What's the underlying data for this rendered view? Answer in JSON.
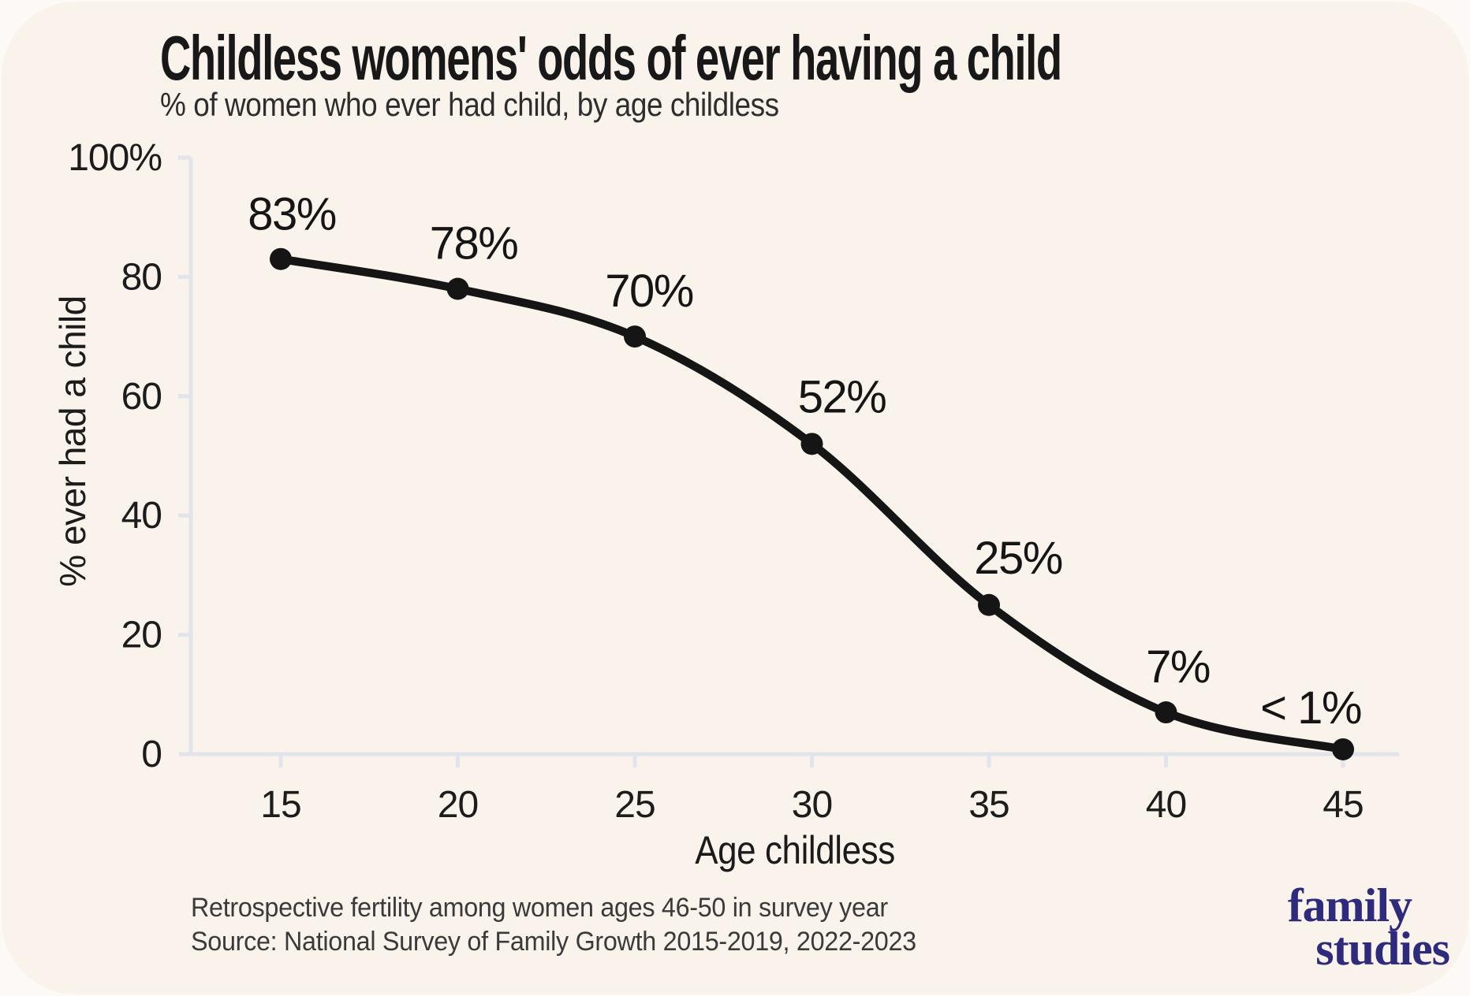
{
  "page": {
    "background": "#fdf9f6",
    "card_background": "#faf3ec"
  },
  "header": {
    "title": "Childless womens' odds of ever having a child",
    "subtitle": "% of women who ever had child, by age childless"
  },
  "chart_data": {
    "type": "line",
    "title": "Childless womens' odds of ever having a child",
    "subtitle": "% of women who ever had child, by age childless",
    "x_label": "Age childless",
    "y_label": "% ever had a child",
    "x": [
      15,
      20,
      25,
      30,
      35,
      40,
      45
    ],
    "values": [
      83,
      78,
      70,
      52,
      25,
      7,
      0.8
    ],
    "point_labels": [
      "83%",
      "78%",
      "70%",
      "52%",
      "25%",
      "7%",
      "< 1%"
    ],
    "x_tick_labels": [
      "15",
      "20",
      "25",
      "30",
      "35",
      "40",
      "45"
    ],
    "y_ticks": [
      0,
      20,
      40,
      60,
      80,
      100
    ],
    "y_tick_labels": [
      "0",
      "20",
      "40",
      "60",
      "80",
      "100%"
    ],
    "xlim": [
      12.5,
      46.6
    ],
    "ylim": [
      0,
      100
    ],
    "grid": false,
    "legend": false,
    "line_color": "#151515",
    "point_color": "#151515",
    "axis_color": "#e1e4ea",
    "tick_label_color": "#1c1c1c",
    "data_label_color": "#151515"
  },
  "footer": {
    "note": "Retrospective fertility among women ages 46-50 in survey year",
    "source": "Source: National Survey of Family Growth 2015-2019, 2022-2023"
  },
  "logo": {
    "line1": "family",
    "line2": "studies",
    "color": "#2e2b7d"
  }
}
